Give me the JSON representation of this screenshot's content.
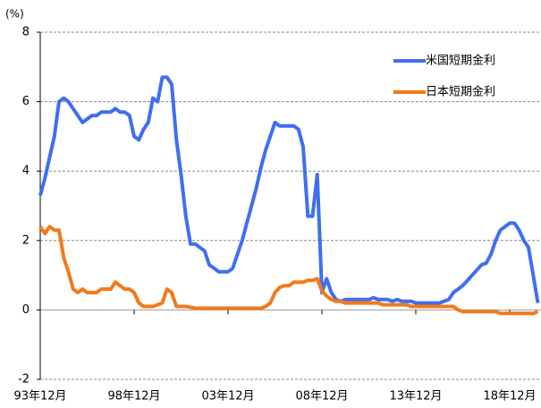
{
  "chart_data": {
    "type": "line",
    "y_unit_label": "(%)",
    "x": [
      0,
      3,
      6,
      9,
      12,
      15,
      18,
      21,
      24,
      27,
      30,
      33,
      36,
      39,
      42,
      45,
      48,
      51,
      54,
      57,
      60,
      63,
      66,
      69,
      72,
      75,
      78,
      81,
      84,
      87,
      90,
      93,
      96,
      99,
      102,
      105,
      108,
      111,
      114,
      117,
      120,
      123,
      126,
      129,
      132,
      135,
      138,
      141,
      144,
      147,
      150,
      153,
      156,
      159,
      162,
      165,
      168,
      171,
      174,
      177,
      180,
      183,
      186,
      189,
      192,
      195,
      198,
      201,
      204,
      207,
      210,
      213,
      216,
      219,
      222,
      225,
      228,
      231,
      234,
      237,
      240,
      243,
      246,
      249,
      252,
      255,
      258,
      261,
      264,
      267,
      270,
      273,
      276,
      279,
      282,
      285,
      288,
      291,
      294,
      297,
      300,
      303,
      306,
      309,
      312,
      315,
      318
    ],
    "series": [
      {
        "name": "米国短期金利",
        "color": "#3f6ff0",
        "values": [
          3.3,
          3.8,
          4.4,
          5.0,
          6.0,
          6.1,
          6.0,
          5.8,
          5.6,
          5.4,
          5.5,
          5.6,
          5.6,
          5.7,
          5.7,
          5.7,
          5.8,
          5.7,
          5.7,
          5.6,
          5.0,
          4.9,
          5.2,
          5.4,
          6.1,
          6.0,
          6.7,
          6.7,
          6.5,
          4.9,
          3.9,
          2.7,
          1.9,
          1.9,
          1.8,
          1.7,
          1.3,
          1.2,
          1.1,
          1.1,
          1.1,
          1.2,
          1.6,
          2.0,
          2.5,
          3.0,
          3.5,
          4.1,
          4.6,
          5.0,
          5.4,
          5.3,
          5.3,
          5.3,
          5.3,
          5.2,
          4.7,
          2.7,
          2.7,
          3.9,
          0.5,
          0.9,
          0.5,
          0.3,
          0.25,
          0.3,
          0.3,
          0.3,
          0.3,
          0.3,
          0.3,
          0.35,
          0.3,
          0.3,
          0.3,
          0.25,
          0.3,
          0.25,
          0.25,
          0.25,
          0.2,
          0.2,
          0.2,
          0.2,
          0.2,
          0.2,
          0.25,
          0.3,
          0.5,
          0.6,
          0.7,
          0.85,
          1.0,
          1.15,
          1.3,
          1.35,
          1.6,
          2.0,
          2.3,
          2.4,
          2.5,
          2.5,
          2.3,
          2.0,
          1.8,
          1.0,
          0.2
        ]
      },
      {
        "name": "日本短期金利",
        "color": "#f27a1a",
        "values": [
          2.4,
          2.2,
          2.4,
          2.3,
          2.3,
          1.5,
          1.1,
          0.6,
          0.5,
          0.6,
          0.5,
          0.5,
          0.5,
          0.6,
          0.6,
          0.6,
          0.8,
          0.7,
          0.6,
          0.6,
          0.5,
          0.2,
          0.1,
          0.1,
          0.1,
          0.15,
          0.2,
          0.6,
          0.5,
          0.1,
          0.1,
          0.1,
          0.08,
          0.05,
          0.05,
          0.05,
          0.05,
          0.05,
          0.05,
          0.05,
          0.05,
          0.05,
          0.05,
          0.05,
          0.05,
          0.05,
          0.05,
          0.05,
          0.1,
          0.2,
          0.5,
          0.65,
          0.7,
          0.7,
          0.8,
          0.8,
          0.8,
          0.85,
          0.85,
          0.9,
          0.55,
          0.4,
          0.3,
          0.25,
          0.25,
          0.2,
          0.2,
          0.2,
          0.2,
          0.2,
          0.2,
          0.2,
          0.2,
          0.15,
          0.15,
          0.15,
          0.15,
          0.15,
          0.15,
          0.1,
          0.1,
          0.1,
          0.1,
          0.1,
          0.1,
          0.1,
          0.1,
          0.1,
          0.1,
          0.0,
          -0.05,
          -0.05,
          -0.05,
          -0.05,
          -0.05,
          -0.05,
          -0.05,
          -0.05,
          -0.1,
          -0.1,
          -0.1,
          -0.1,
          -0.1,
          -0.1,
          -0.1,
          -0.1,
          -0.05
        ]
      }
    ],
    "xlim": [
      0,
      320
    ],
    "xticks": [
      {
        "value": 0,
        "label": "93年12月"
      },
      {
        "value": 60,
        "label": "98年12月"
      },
      {
        "value": 120,
        "label": "03年12月"
      },
      {
        "value": 180,
        "label": "08年12月"
      },
      {
        "value": 240,
        "label": "13年12月"
      },
      {
        "value": 300,
        "label": "18年12月"
      }
    ],
    "ylim": [
      -2,
      8
    ],
    "yticks": [
      -2,
      0,
      2,
      4,
      6,
      8
    ],
    "grid": true,
    "legend": "upper right"
  }
}
